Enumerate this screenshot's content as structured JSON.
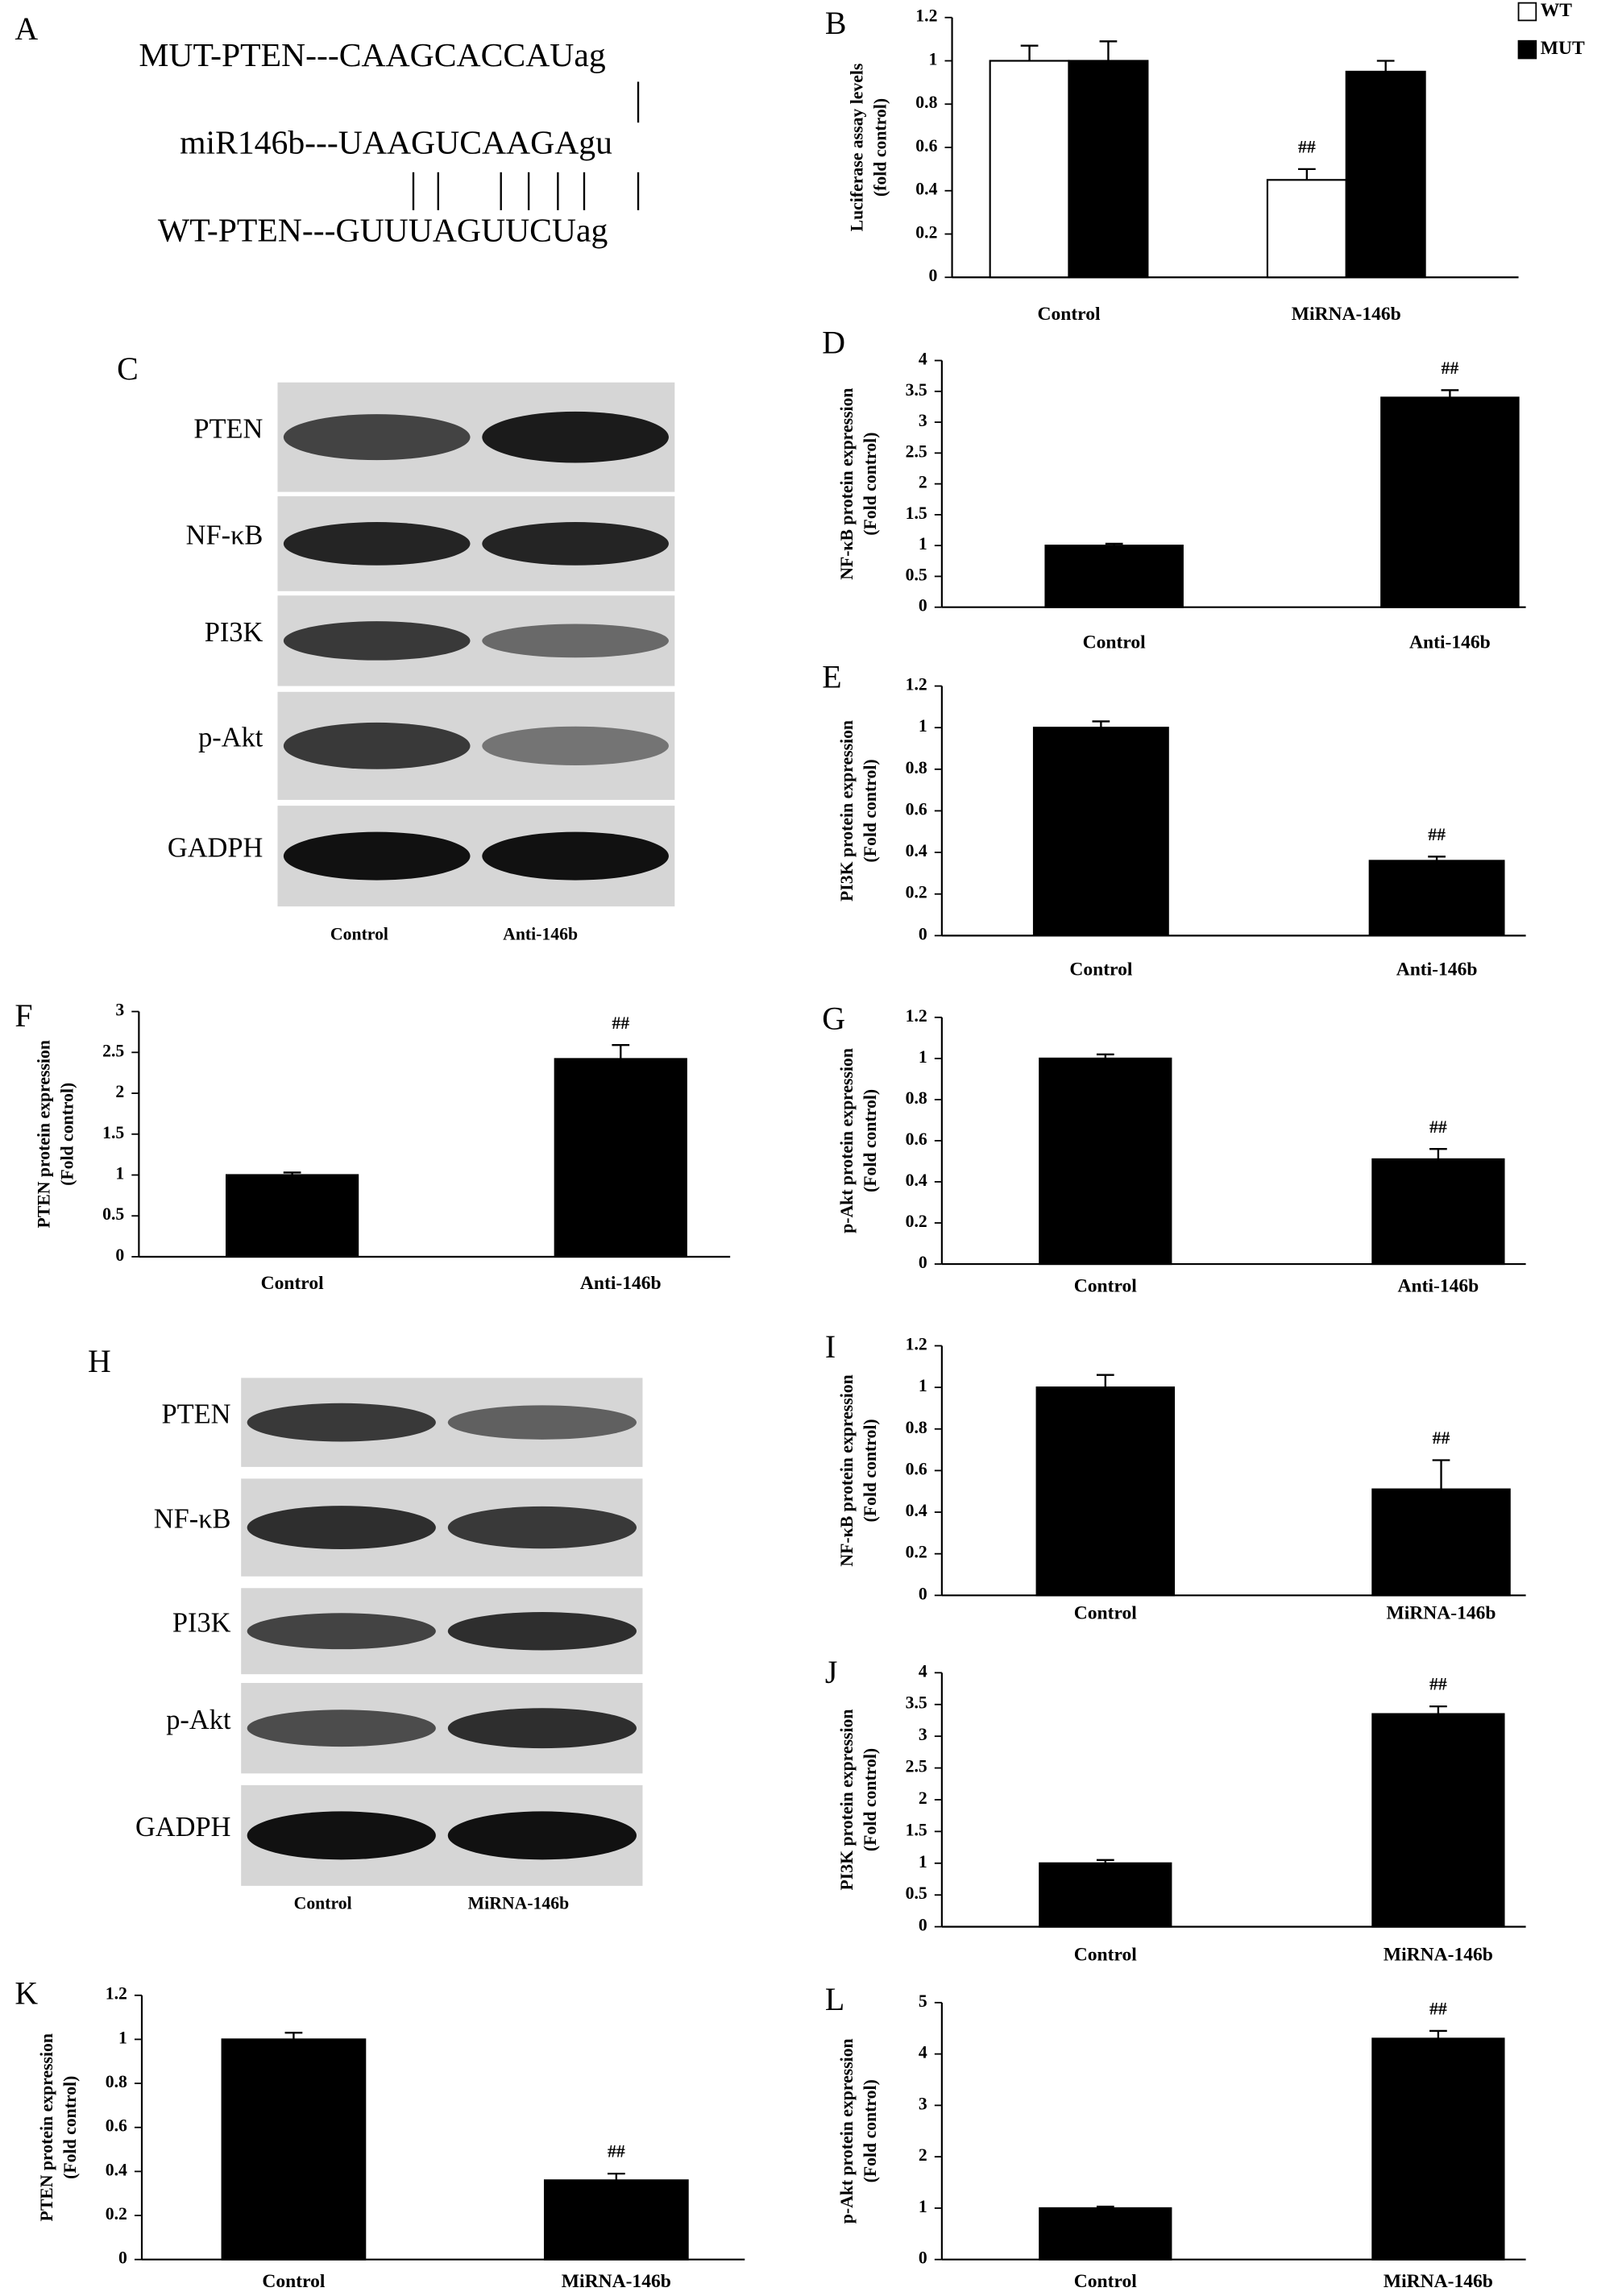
{
  "sequence_panel": {
    "label": "A",
    "mut": "MUT-PTEN---CAAGCACCAUag",
    "mir": "miR146b---UAAGUCAAGAgu",
    "wt": "WT-PTEN---GUUUAGUUCUag"
  },
  "blots": [
    {
      "label": "C",
      "rows": [
        "PTEN",
        "NF-κB",
        "PI3K",
        "p-Akt",
        "GADPH"
      ],
      "lanes": [
        "Control",
        "Anti-146b"
      ]
    },
    {
      "label": "H",
      "rows": [
        "PTEN",
        "NF-κB",
        "PI3K",
        "p-Akt",
        "GADPH"
      ],
      "lanes": [
        "Control",
        "MiRNA-146b"
      ]
    }
  ],
  "chart_data": [
    {
      "type": "bar",
      "label": "B",
      "ylabel": [
        "Luciferase assay levels",
        "(fold control)"
      ],
      "categories": [
        "Control",
        "MiRNA-146b"
      ],
      "series": [
        {
          "name": "WT",
          "color": "#ffffff",
          "values": [
            1,
            0.45
          ],
          "errors": [
            0.07,
            0.05
          ],
          "annotations": [
            null,
            "##"
          ]
        },
        {
          "name": "MUT",
          "color": "#000000",
          "values": [
            1,
            0.95
          ],
          "errors": [
            0.09,
            0.05
          ]
        }
      ],
      "ylim": [
        0,
        1.2
      ],
      "yticks": [
        0,
        0.2,
        0.4,
        0.6,
        0.8,
        1,
        1.2
      ],
      "legend": "top-right"
    },
    {
      "type": "bar",
      "label": "D",
      "ylabel": [
        "NF-κB protein expression",
        "(Fold control)"
      ],
      "categories": [
        "Control",
        "Anti-146b"
      ],
      "series": [
        {
          "color": "#000000",
          "values": [
            1,
            3.4
          ],
          "errors": [
            0.03,
            0.12
          ],
          "annotations": [
            null,
            "##"
          ]
        }
      ],
      "ylim": [
        0,
        4
      ],
      "yticks": [
        0,
        0.5,
        1,
        1.5,
        2,
        2.5,
        3,
        3.5,
        4
      ]
    },
    {
      "type": "bar",
      "label": "E",
      "ylabel": [
        "PI3K protein expression",
        "(Fold control)"
      ],
      "categories": [
        "Control",
        "Anti-146b"
      ],
      "series": [
        {
          "color": "#000000",
          "values": [
            1,
            0.36
          ],
          "errors": [
            0.03,
            0.02
          ],
          "annotations": [
            null,
            "##"
          ]
        }
      ],
      "ylim": [
        0,
        1.2
      ],
      "yticks": [
        0,
        0.2,
        0.4,
        0.6,
        0.8,
        1,
        1.2
      ]
    },
    {
      "type": "bar",
      "label": "F",
      "ylabel": [
        "PTEN protein expression",
        "(Fold control)"
      ],
      "categories": [
        "Control",
        "Anti-146b"
      ],
      "series": [
        {
          "color": "#000000",
          "values": [
            1,
            2.42
          ],
          "errors": [
            0.03,
            0.17
          ],
          "annotations": [
            null,
            "##"
          ]
        }
      ],
      "ylim": [
        0,
        3
      ],
      "yticks": [
        0,
        0.5,
        1,
        1.5,
        2,
        2.5,
        3
      ]
    },
    {
      "type": "bar",
      "label": "G",
      "ylabel": [
        "p-Akt protein expression",
        "(Fold control)"
      ],
      "categories": [
        "Control",
        "Anti-146b"
      ],
      "series": [
        {
          "color": "#000000",
          "values": [
            1,
            0.51
          ],
          "errors": [
            0.02,
            0.05
          ],
          "annotations": [
            null,
            "##"
          ]
        }
      ],
      "ylim": [
        0,
        1.2
      ],
      "yticks": [
        0,
        0.2,
        0.4,
        0.6,
        0.8,
        1,
        1.2
      ]
    },
    {
      "type": "bar",
      "label": "I",
      "ylabel": [
        "NF-κB protein expression",
        "(Fold control)"
      ],
      "categories": [
        "Control",
        "MiRNA-146b"
      ],
      "series": [
        {
          "color": "#000000",
          "values": [
            1,
            0.51
          ],
          "errors": [
            0.06,
            0.14
          ],
          "annotations": [
            null,
            "##"
          ]
        }
      ],
      "ylim": [
        0,
        1.2
      ],
      "yticks": [
        0,
        0.2,
        0.4,
        0.6,
        0.8,
        1,
        1.2
      ]
    },
    {
      "type": "bar",
      "label": "J",
      "ylabel": [
        "PI3K protein expression",
        "(Fold control)"
      ],
      "categories": [
        "Control",
        "MiRNA-146b"
      ],
      "series": [
        {
          "color": "#000000",
          "values": [
            1,
            3.35
          ],
          "errors": [
            0.05,
            0.12
          ],
          "annotations": [
            null,
            "##"
          ]
        }
      ],
      "ylim": [
        0,
        4
      ],
      "yticks": [
        0,
        0.5,
        1,
        1.5,
        2,
        2.5,
        3,
        3.5,
        4
      ]
    },
    {
      "type": "bar",
      "label": "K",
      "ylabel": [
        "PTEN protein expression",
        "(Fold control)"
      ],
      "categories": [
        "Control",
        "MiRNA-146b"
      ],
      "series": [
        {
          "color": "#000000",
          "values": [
            1,
            0.36
          ],
          "errors": [
            0.03,
            0.03
          ],
          "annotations": [
            null,
            "##"
          ]
        }
      ],
      "ylim": [
        0,
        1.2
      ],
      "yticks": [
        0,
        0.2,
        0.4,
        0.6,
        0.8,
        1,
        1.2
      ]
    },
    {
      "type": "bar",
      "label": "L",
      "ylabel": [
        "p-Akt protein expression",
        "(Fold control)"
      ],
      "categories": [
        "Control",
        "MiRNA-146b"
      ],
      "series": [
        {
          "color": "#000000",
          "values": [
            1,
            4.3
          ],
          "errors": [
            0.03,
            0.15
          ],
          "annotations": [
            null,
            "##"
          ]
        }
      ],
      "ylim": [
        0,
        5
      ],
      "yticks": [
        0,
        1,
        2,
        3,
        4,
        5
      ]
    }
  ]
}
